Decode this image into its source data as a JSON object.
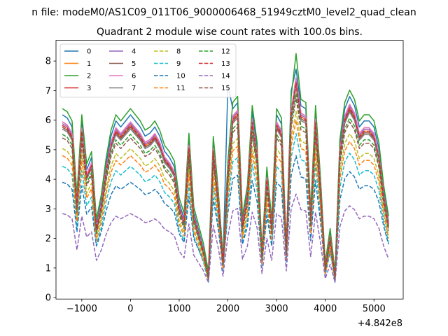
{
  "chart_data": {
    "type": "line",
    "suptitle": "n file: modeM0/AS1C09_011T06_9000006468_51949cztM0_level2_quad_clean",
    "title": "Quadrant 2 module wise count rates with 100.0s bins.",
    "xlabel": "",
    "ylabel": "",
    "x_offset_label": "+4.842e8",
    "xlim": [
      -1530,
      5600
    ],
    "ylim": [
      -0.05,
      8.7
    ],
    "xticks": [
      -1000,
      0,
      1000,
      2000,
      3000,
      4000,
      5000
    ],
    "xtick_labels": [
      "−1000",
      "0",
      "1000",
      "2000",
      "3000",
      "4000",
      "5000"
    ],
    "yticks": [
      0,
      1,
      2,
      3,
      4,
      5,
      6,
      7,
      8
    ],
    "ytick_labels": [
      "0",
      "1",
      "2",
      "3",
      "4",
      "5",
      "6",
      "7",
      "8"
    ],
    "legend_position": "upper-left",
    "legend_columns": 4,
    "x": [
      -1400,
      -1300,
      -1200,
      -1100,
      -1000,
      -900,
      -800,
      -700,
      -600,
      -500,
      -400,
      -300,
      -200,
      -100,
      0,
      100,
      200,
      300,
      400,
      500,
      600,
      700,
      800,
      900,
      1000,
      1100,
      1200,
      1300,
      1400,
      1500,
      1600,
      1700,
      1800,
      1900,
      2000,
      2100,
      2200,
      2300,
      2400,
      2500,
      2600,
      2700,
      2800,
      2900,
      3000,
      3100,
      3200,
      3300,
      3400,
      3500,
      3600,
      3700,
      3800,
      3900,
      4000,
      4100,
      4200,
      4300,
      4400,
      4500,
      4600,
      4700,
      4800,
      4900,
      5000,
      5100,
      5200,
      5300
    ],
    "base_profile": [
      6.0,
      5.9,
      5.6,
      3.2,
      5.8,
      4.2,
      4.6,
      2.4,
      3.2,
      4.4,
      5.3,
      5.8,
      5.6,
      5.8,
      6.0,
      5.8,
      5.6,
      5.3,
      5.4,
      5.6,
      5.3,
      4.8,
      4.6,
      4.3,
      3.1,
      2.6,
      5.2,
      2.8,
      2.2,
      1.6,
      0.7,
      5.1,
      3.4,
      1.2,
      4.3,
      6.2,
      6.4,
      2.5,
      3.5,
      6.1,
      4.9,
      1.4,
      4.1,
      2.4,
      6.0,
      5.7,
      1.6,
      6.4,
      7.5,
      6.3,
      6.2,
      2.7,
      6.1,
      3.8,
      1.0,
      2.1,
      0.7,
      5.0,
      6.2,
      6.6,
      6.3,
      5.6,
      5.8,
      5.8,
      5.6,
      4.9,
      3.5,
      2.5
    ],
    "series": [
      {
        "name": "0",
        "color": "#1f77b4",
        "dash": "solid",
        "scale": 1.03,
        "offset": 0.0,
        "peaks": {
          "34": 7.2,
          "47": 7.0
        }
      },
      {
        "name": "1",
        "color": "#ff7f0e",
        "dash": "solid",
        "scale": 0.97,
        "offset": 0.0,
        "peaks": {}
      },
      {
        "name": "2",
        "color": "#2ca02c",
        "dash": "solid",
        "scale": 1.04,
        "offset": 0.15,
        "peaks": {
          "48": 8.25
        }
      },
      {
        "name": "3",
        "color": "#d62728",
        "dash": "solid",
        "scale": 0.99,
        "offset": 0.0,
        "peaks": {}
      },
      {
        "name": "4",
        "color": "#9467bd",
        "dash": "solid",
        "scale": 0.98,
        "offset": 0.0,
        "peaks": {}
      },
      {
        "name": "5",
        "color": "#8c564b",
        "dash": "solid",
        "scale": 0.96,
        "offset": 0.0,
        "peaks": {}
      },
      {
        "name": "6",
        "color": "#e377c2",
        "dash": "solid",
        "scale": 0.99,
        "offset": 0.0,
        "peaks": {}
      },
      {
        "name": "7",
        "color": "#7f7f7f",
        "dash": "solid",
        "scale": 0.95,
        "offset": 0.0,
        "peaks": {}
      },
      {
        "name": "8",
        "color": "#bcbd22",
        "dash": "dashed",
        "scale": 0.84,
        "offset": 0.0,
        "peaks": {}
      },
      {
        "name": "9",
        "color": "#17becf",
        "dash": "dashed",
        "scale": 0.74,
        "offset": 0.0,
        "peaks": {}
      },
      {
        "name": "10",
        "color": "#1f77b4",
        "dash": "dashed",
        "scale": 0.6,
        "offset": 0.3,
        "peaks": {}
      },
      {
        "name": "11",
        "color": "#ff7f0e",
        "dash": "dashed",
        "scale": 0.8,
        "offset": 0.0,
        "peaks": {}
      },
      {
        "name": "12",
        "color": "#2ca02c",
        "dash": "dashed",
        "scale": 0.92,
        "offset": 0.0,
        "peaks": {}
      },
      {
        "name": "13",
        "color": "#d62728",
        "dash": "dashed",
        "scale": 0.97,
        "offset": 0.0,
        "peaks": {}
      },
      {
        "name": "14",
        "color": "#9467bd",
        "dash": "dashed",
        "scale": 0.44,
        "offset": 0.2,
        "peaks": {}
      },
      {
        "name": "15",
        "color": "#8c564b",
        "dash": "dashed",
        "scale": 0.9,
        "offset": 0.0,
        "peaks": {}
      }
    ]
  }
}
